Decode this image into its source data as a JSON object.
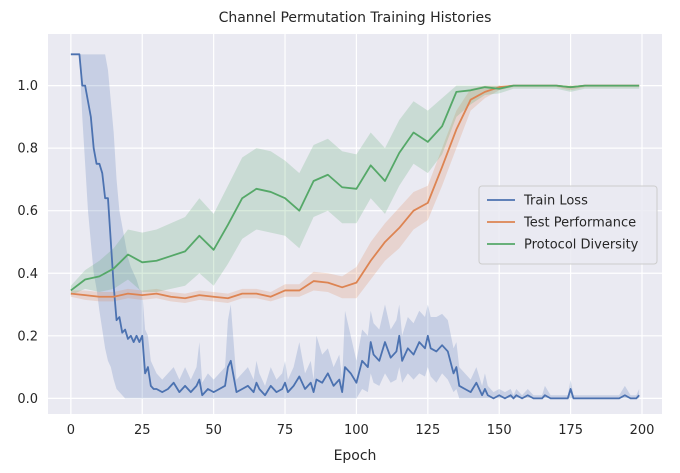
{
  "chart_data": {
    "type": "line",
    "title": "Channel Permutation Training Histories",
    "xlabel": "Epoch",
    "ylabel": "",
    "xlim": [
      -8,
      207
    ],
    "ylim": [
      -0.05,
      1.165
    ],
    "xticks": [
      0,
      25,
      50,
      75,
      100,
      125,
      150,
      175,
      200
    ],
    "yticks": [
      0.0,
      0.2,
      0.4,
      0.6,
      0.8,
      1.0
    ],
    "ytick_labels": [
      "0.0",
      "0.2",
      "0.4",
      "0.6",
      "0.8",
      "1.0"
    ],
    "grid": true,
    "legend_position": "center-right",
    "series": [
      {
        "name": "Train Loss",
        "color": "#4c72b0",
        "band_type": "area",
        "x": [
          0,
          1,
          2,
          3,
          4,
          5,
          6,
          7,
          8,
          9,
          10,
          11,
          12,
          13,
          14,
          15,
          16,
          17,
          18,
          19,
          20,
          21,
          22,
          23,
          24,
          25,
          26,
          27,
          28,
          29,
          30,
          32,
          34,
          36,
          38,
          40,
          42,
          44,
          45,
          46,
          48,
          50,
          52,
          54,
          55,
          56,
          58,
          60,
          62,
          64,
          65,
          66,
          68,
          70,
          72,
          74,
          75,
          76,
          78,
          80,
          82,
          84,
          85,
          86,
          88,
          90,
          92,
          94,
          95,
          96,
          98,
          100,
          102,
          104,
          105,
          106,
          108,
          110,
          112,
          114,
          115,
          116,
          118,
          120,
          122,
          124,
          125,
          126,
          128,
          130,
          132,
          134,
          135,
          136,
          138,
          140,
          142,
          144,
          145,
          146,
          148,
          150,
          152,
          154,
          155,
          156,
          158,
          160,
          162,
          164,
          165,
          166,
          168,
          170,
          172,
          174,
          175,
          176,
          178,
          180,
          182,
          184,
          186,
          188,
          190,
          192,
          194,
          196,
          198,
          199
        ],
        "y": [
          1.1,
          1.1,
          1.1,
          1.1,
          1.0,
          1.0,
          0.95,
          0.9,
          0.8,
          0.75,
          0.75,
          0.72,
          0.64,
          0.64,
          0.5,
          0.36,
          0.25,
          0.26,
          0.21,
          0.22,
          0.19,
          0.2,
          0.18,
          0.2,
          0.18,
          0.2,
          0.08,
          0.1,
          0.04,
          0.03,
          0.03,
          0.02,
          0.03,
          0.05,
          0.02,
          0.04,
          0.02,
          0.04,
          0.06,
          0.01,
          0.03,
          0.02,
          0.03,
          0.04,
          0.1,
          0.12,
          0.02,
          0.03,
          0.04,
          0.02,
          0.05,
          0.03,
          0.01,
          0.04,
          0.02,
          0.03,
          0.05,
          0.02,
          0.04,
          0.07,
          0.03,
          0.05,
          0.02,
          0.06,
          0.05,
          0.08,
          0.04,
          0.06,
          0.02,
          0.1,
          0.08,
          0.05,
          0.12,
          0.1,
          0.18,
          0.14,
          0.12,
          0.18,
          0.13,
          0.15,
          0.2,
          0.12,
          0.16,
          0.14,
          0.18,
          0.16,
          0.2,
          0.16,
          0.15,
          0.17,
          0.15,
          0.08,
          0.1,
          0.04,
          0.03,
          0.02,
          0.05,
          0.01,
          0.03,
          0.01,
          0.0,
          0.01,
          0.0,
          0.01,
          0.0,
          0.01,
          0.0,
          0.01,
          0.0,
          0.0,
          0.0,
          0.01,
          0.0,
          0.0,
          0.0,
          0.0,
          0.03,
          0.0,
          0.0,
          0.0,
          0.0,
          0.0,
          0.0,
          0.0,
          0.0,
          0.0,
          0.01,
          0.0,
          0.0,
          0.01
        ],
        "y_lower": [
          1.1,
          1.1,
          1.1,
          1.1,
          0.9,
          0.75,
          0.6,
          0.5,
          0.4,
          0.35,
          0.28,
          0.22,
          0.16,
          0.12,
          0.1,
          0.06,
          0.03,
          0.02,
          0.01,
          0.0,
          0.0,
          0.0,
          0.0,
          0.0,
          0.0,
          0.0,
          0.0,
          0.0,
          0.0,
          0.0,
          0.0,
          0.0,
          0.0,
          0.0,
          0.0,
          0.0,
          0.0,
          0.0,
          0.0,
          0.0,
          0.0,
          0.0,
          0.0,
          0.0,
          0.0,
          0.0,
          0.0,
          0.0,
          0.0,
          0.0,
          0.0,
          0.0,
          0.0,
          0.0,
          0.0,
          0.0,
          0.0,
          0.0,
          0.0,
          0.0,
          0.0,
          0.0,
          0.0,
          0.0,
          0.0,
          0.0,
          0.0,
          0.0,
          0.0,
          0.0,
          0.0,
          0.0,
          0.03,
          0.02,
          0.08,
          0.05,
          0.04,
          0.08,
          0.05,
          0.06,
          0.1,
          0.05,
          0.08,
          0.06,
          0.08,
          0.07,
          0.1,
          0.07,
          0.05,
          0.08,
          0.06,
          0.02,
          0.03,
          0.0,
          0.0,
          0.0,
          0.0,
          0.0,
          0.0,
          0.0,
          0.0,
          0.0,
          0.0,
          0.0,
          0.0,
          0.0,
          0.0,
          0.0,
          0.0,
          0.0,
          0.0,
          0.0,
          0.0,
          0.0,
          0.0,
          0.0,
          0.0,
          0.0,
          0.0,
          0.0,
          0.0,
          0.0,
          0.0,
          0.0,
          0.0,
          0.0,
          0.0,
          0.0,
          0.0,
          0.0
        ],
        "y_upper": [
          1.1,
          1.1,
          1.1,
          1.1,
          1.1,
          1.1,
          1.1,
          1.1,
          1.1,
          1.1,
          1.1,
          1.1,
          1.1,
          1.05,
          0.95,
          0.85,
          0.7,
          0.6,
          0.55,
          0.5,
          0.45,
          0.42,
          0.4,
          0.38,
          0.35,
          0.34,
          0.22,
          0.2,
          0.12,
          0.1,
          0.08,
          0.06,
          0.08,
          0.1,
          0.06,
          0.1,
          0.06,
          0.1,
          0.18,
          0.05,
          0.08,
          0.06,
          0.08,
          0.1,
          0.25,
          0.3,
          0.06,
          0.08,
          0.1,
          0.06,
          0.12,
          0.08,
          0.04,
          0.1,
          0.06,
          0.08,
          0.12,
          0.06,
          0.1,
          0.18,
          0.08,
          0.12,
          0.06,
          0.2,
          0.14,
          0.16,
          0.1,
          0.14,
          0.06,
          0.28,
          0.2,
          0.12,
          0.22,
          0.2,
          0.28,
          0.24,
          0.22,
          0.3,
          0.22,
          0.25,
          0.3,
          0.2,
          0.26,
          0.24,
          0.28,
          0.26,
          0.3,
          0.26,
          0.26,
          0.27,
          0.25,
          0.16,
          0.18,
          0.1,
          0.08,
          0.06,
          0.1,
          0.04,
          0.08,
          0.04,
          0.02,
          0.03,
          0.02,
          0.03,
          0.01,
          0.03,
          0.01,
          0.03,
          0.01,
          0.01,
          0.01,
          0.04,
          0.01,
          0.01,
          0.01,
          0.01,
          0.06,
          0.01,
          0.01,
          0.01,
          0.01,
          0.01,
          0.01,
          0.01,
          0.01,
          0.01,
          0.04,
          0.01,
          0.01,
          0.03
        ]
      },
      {
        "name": "Test Performance",
        "color": "#dd8452",
        "band_type": "area",
        "x": [
          0,
          5,
          10,
          15,
          20,
          25,
          30,
          35,
          40,
          45,
          50,
          55,
          60,
          65,
          70,
          75,
          80,
          85,
          90,
          95,
          100,
          105,
          110,
          115,
          120,
          125,
          130,
          135,
          140,
          145,
          150,
          155,
          160,
          165,
          170,
          175,
          180,
          185,
          190,
          195,
          199
        ],
        "y": [
          0.335,
          0.33,
          0.325,
          0.325,
          0.335,
          0.33,
          0.335,
          0.325,
          0.32,
          0.33,
          0.325,
          0.32,
          0.335,
          0.335,
          0.325,
          0.345,
          0.345,
          0.375,
          0.37,
          0.355,
          0.37,
          0.44,
          0.5,
          0.545,
          0.6,
          0.625,
          0.74,
          0.86,
          0.955,
          0.98,
          0.995,
          1.0,
          1.0,
          1.0,
          1.0,
          0.995,
          1.0,
          1.0,
          1.0,
          1.0,
          1.0
        ],
        "y_lower": [
          0.325,
          0.315,
          0.31,
          0.31,
          0.32,
          0.315,
          0.32,
          0.31,
          0.305,
          0.315,
          0.31,
          0.305,
          0.32,
          0.32,
          0.31,
          0.325,
          0.325,
          0.345,
          0.34,
          0.32,
          0.32,
          0.38,
          0.44,
          0.48,
          0.54,
          0.57,
          0.68,
          0.8,
          0.92,
          0.96,
          0.985,
          0.995,
          0.995,
          0.995,
          0.995,
          0.985,
          0.995,
          0.995,
          0.995,
          0.995,
          0.995
        ],
        "y_upper": [
          0.345,
          0.345,
          0.34,
          0.34,
          0.35,
          0.345,
          0.35,
          0.34,
          0.335,
          0.345,
          0.34,
          0.335,
          0.35,
          0.35,
          0.34,
          0.365,
          0.365,
          0.405,
          0.4,
          0.39,
          0.42,
          0.5,
          0.56,
          0.61,
          0.66,
          0.68,
          0.8,
          0.92,
          0.99,
          1.0,
          1.0,
          1.0,
          1.0,
          1.0,
          1.0,
          1.0,
          1.0,
          1.0,
          1.0,
          1.0,
          1.0
        ]
      },
      {
        "name": "Protocol Diversity",
        "color": "#55a868",
        "band_type": "area",
        "x": [
          0,
          5,
          10,
          15,
          20,
          25,
          30,
          35,
          40,
          45,
          50,
          55,
          60,
          65,
          70,
          75,
          80,
          85,
          90,
          95,
          100,
          105,
          110,
          115,
          120,
          125,
          130,
          135,
          140,
          145,
          150,
          155,
          160,
          165,
          170,
          175,
          180,
          185,
          190,
          195,
          199
        ],
        "y": [
          0.345,
          0.38,
          0.39,
          0.415,
          0.46,
          0.435,
          0.44,
          0.455,
          0.47,
          0.52,
          0.475,
          0.555,
          0.64,
          0.67,
          0.66,
          0.64,
          0.6,
          0.695,
          0.715,
          0.675,
          0.67,
          0.745,
          0.695,
          0.785,
          0.85,
          0.82,
          0.87,
          0.98,
          0.985,
          0.995,
          0.99,
          1.0,
          1.0,
          1.0,
          1.0,
          0.995,
          1.0,
          1.0,
          1.0,
          1.0,
          1.0
        ],
        "y_lower": [
          0.33,
          0.35,
          0.34,
          0.35,
          0.38,
          0.34,
          0.34,
          0.35,
          0.36,
          0.4,
          0.36,
          0.43,
          0.51,
          0.54,
          0.53,
          0.52,
          0.48,
          0.58,
          0.6,
          0.56,
          0.56,
          0.64,
          0.59,
          0.68,
          0.75,
          0.72,
          0.78,
          0.9,
          0.94,
          0.97,
          0.975,
          0.99,
          0.99,
          0.99,
          0.99,
          0.98,
          0.99,
          0.99,
          0.99,
          0.99,
          0.99
        ],
        "y_upper": [
          0.36,
          0.41,
          0.44,
          0.48,
          0.54,
          0.53,
          0.54,
          0.56,
          0.58,
          0.64,
          0.59,
          0.68,
          0.77,
          0.8,
          0.79,
          0.76,
          0.72,
          0.81,
          0.83,
          0.79,
          0.78,
          0.85,
          0.8,
          0.89,
          0.95,
          0.92,
          0.96,
          1.0,
          1.0,
          1.0,
          1.0,
          1.0,
          1.0,
          1.0,
          1.0,
          1.0,
          1.0,
          1.0,
          1.0,
          1.0,
          1.0
        ]
      }
    ]
  }
}
